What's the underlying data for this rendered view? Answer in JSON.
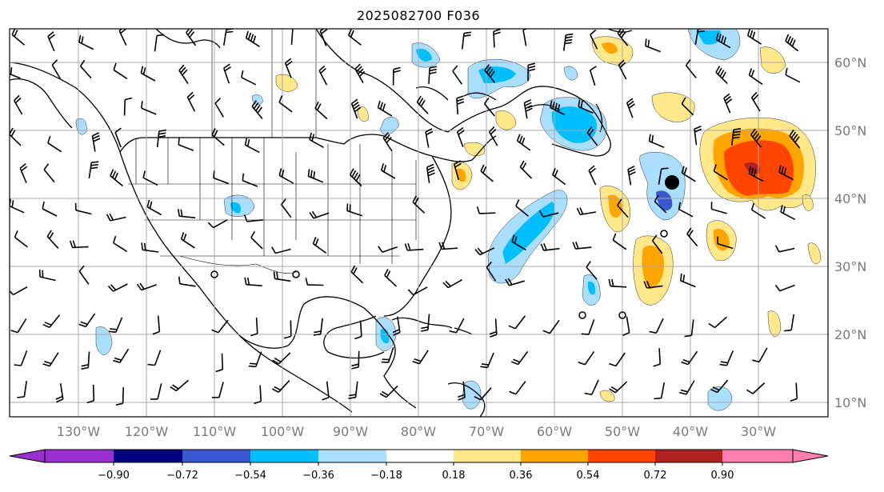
{
  "title": "2025082700 F036",
  "map": {
    "lon_labels": [
      "130°W",
      "120°W",
      "110°W",
      "100°W",
      "90°W",
      "80°W",
      "70°W",
      "60°W",
      "50°W",
      "40°W",
      "30°W"
    ],
    "lat_labels": [
      "60°N",
      "50°N",
      "40°N",
      "30°N",
      "20°N",
      "10°N"
    ],
    "extent": {
      "lon_min": -138,
      "lon_max": -22,
      "lat_min": 8,
      "lat_max": 65
    },
    "gridlines": true
  },
  "colorbar": {
    "orientation": "horizontal",
    "extend": "both",
    "tick_labels": [
      "−0.90",
      "−0.72",
      "−0.54",
      "−0.36",
      "−0.18",
      "0.18",
      "0.36",
      "0.54",
      "0.72",
      "0.90"
    ],
    "colors": [
      "#9b30d0",
      "#00007f",
      "#3a58d0",
      "#00bfff",
      "#aadeff",
      "#ffffff",
      "#ffe88a",
      "#ffa500",
      "#ff4500",
      "#b22222",
      "#ff7fae"
    ]
  }
}
